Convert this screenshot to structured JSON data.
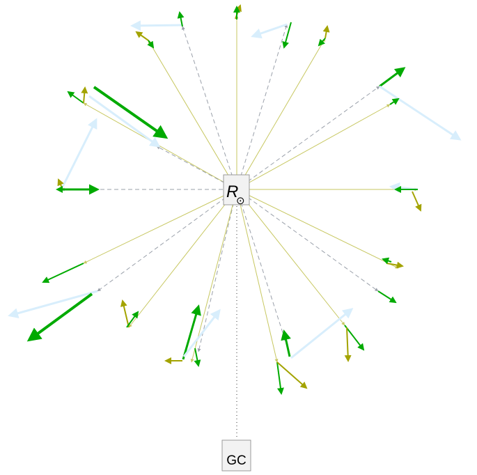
{
  "center_node": {
    "label": "R",
    "marker": "⊙"
  },
  "bottom_node": {
    "label": "GC"
  },
  "colors": {
    "olive_line": "#c7c760",
    "dashed_gray": "#9aa0aa",
    "green": "#00aa00",
    "olive_arrow": "#a3a300",
    "light_blue": "#d8eefc",
    "node_stroke": "#999999",
    "node_fill": "#f2f2f2"
  }
}
